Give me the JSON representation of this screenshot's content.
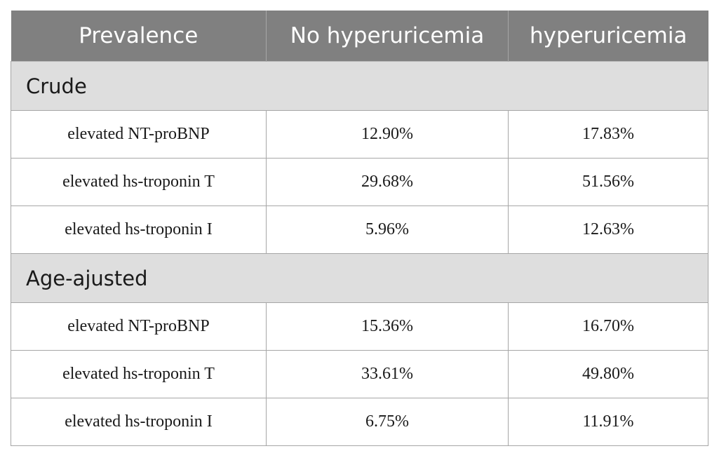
{
  "table": {
    "headers": [
      "Prevalence",
      "No hyperuricemia",
      "hyperuricemia"
    ],
    "sections": [
      {
        "title": "Crude",
        "rows": [
          [
            "elevated NT-proBNP",
            "12.90%",
            "17.83%"
          ],
          [
            "elevated hs-troponin T",
            "29.68%",
            "51.56%"
          ],
          [
            "elevated hs-troponin I",
            "5.96%",
            "12.63%"
          ]
        ]
      },
      {
        "title": "Age-ajusted",
        "rows": [
          [
            "elevated NT-proBNP",
            "15.36%",
            "16.70%"
          ],
          [
            "elevated hs-troponin T",
            "33.61%",
            "49.80%"
          ],
          [
            "elevated hs-troponin I",
            "6.75%",
            "11.91%"
          ]
        ]
      }
    ]
  },
  "colors": {
    "header_bg": "#808080",
    "header_text": "#ffffff",
    "section_bg": "#dedede",
    "border": "#a6a6a6"
  }
}
